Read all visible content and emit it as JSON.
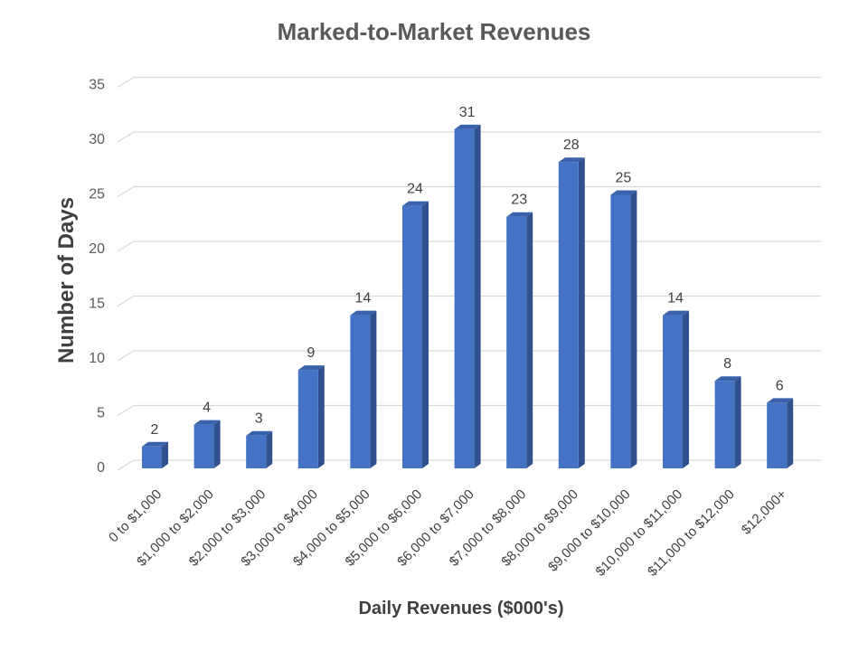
{
  "chart_data": {
    "type": "bar",
    "title": "Marked-to-Market Revenues",
    "xlabel": "Daily Revenues ($000's)",
    "ylabel": "Number of Days",
    "categories": [
      "0 to $1,000",
      "$1,000 to $2,000",
      "$2,000 to $3,000",
      "$3,000 to $4,000",
      "$4,000 to $5,000",
      "$5,000 to $6,000",
      "$6,000 to $7,000",
      "$7,000 to $8,000",
      "$8,000 to $9,000",
      "$9,000 to $10,000",
      "$10,000 to $11,000",
      "$11,000 to $12,000",
      "$12,000+"
    ],
    "values": [
      2,
      4,
      3,
      9,
      14,
      24,
      31,
      23,
      28,
      25,
      14,
      8,
      6
    ],
    "ylim": [
      0,
      35
    ],
    "yticks": [
      0,
      5,
      10,
      15,
      20,
      25,
      30,
      35
    ],
    "grid": true,
    "style": "3d-column",
    "colors": {
      "bar_front": "#4472C4",
      "bar_side": "#2F528F",
      "bar_top": "#3A62AC",
      "grid": "#D9D9D9"
    }
  }
}
